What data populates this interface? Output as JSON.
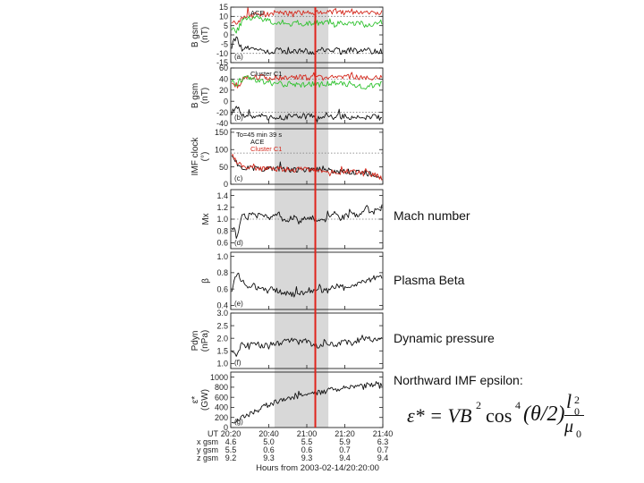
{
  "chart_data": [
    {
      "type": "line",
      "panel_tag": "(a)",
      "ylabel": "B gsm\n(nT)",
      "ylim": [
        -15,
        15
      ],
      "yticks": [
        "15",
        "10",
        "5",
        "0",
        "-5",
        "-10",
        "-15"
      ],
      "ytick_values": [
        15,
        10,
        5,
        0,
        -5,
        -10,
        -15
      ],
      "dotted_lines": [
        10,
        -10
      ],
      "legend": [
        "ACE"
      ],
      "series": [
        {
          "name": "red",
          "color": "#d42a1e",
          "values": [
            8,
            5,
            9,
            11,
            10,
            11,
            12,
            11,
            12,
            12,
            11,
            12,
            13,
            12,
            12,
            13,
            12,
            13,
            12,
            12,
            13,
            12,
            12,
            13,
            12,
            12,
            13,
            12,
            12,
            12
          ]
        },
        {
          "name": "green",
          "color": "#2fc22f",
          "values": [
            4,
            2,
            7,
            9,
            8,
            9,
            8,
            8,
            7,
            6,
            7,
            7,
            6,
            7,
            6,
            6,
            7,
            6,
            6,
            7,
            6,
            7,
            6,
            7,
            6,
            6,
            5,
            6,
            6,
            7
          ]
        },
        {
          "name": "black",
          "color": "#111111",
          "values": [
            -6,
            -2,
            -8,
            -7,
            -8,
            -9,
            -8,
            -9,
            -9,
            -8,
            -9,
            -9,
            -8,
            -9,
            -8,
            -9,
            -9,
            -8,
            -9,
            -9,
            -8,
            -9,
            -9,
            -8,
            -9,
            -9,
            -8,
            -9,
            -9,
            -9
          ]
        }
      ]
    },
    {
      "type": "line",
      "panel_tag": "(b)",
      "ylabel": "B gsm\n(nT)",
      "ylim": [
        -40,
        60
      ],
      "yticks": [
        "60",
        "40",
        "20",
        "0",
        "-20",
        "-40"
      ],
      "ytick_values": [
        60,
        40,
        20,
        0,
        -20,
        -40
      ],
      "dotted_lines": [
        40,
        -20
      ],
      "legend": [
        "Cluster C1"
      ],
      "series": [
        {
          "name": "red",
          "color": "#d42a1e",
          "values": [
            38,
            20,
            40,
            44,
            42,
            44,
            43,
            42,
            44,
            43,
            42,
            43,
            42,
            43,
            42,
            43,
            44,
            43,
            42,
            44,
            43,
            42,
            43,
            44,
            42,
            43,
            44,
            43,
            42,
            43
          ]
        },
        {
          "name": "green",
          "color": "#2fc22f",
          "values": [
            40,
            30,
            42,
            45,
            40,
            38,
            36,
            34,
            35,
            33,
            30,
            32,
            30,
            31,
            29,
            30,
            32,
            30,
            31,
            32,
            34,
            32,
            30,
            31,
            30,
            28,
            26,
            28,
            30,
            32
          ]
        },
        {
          "name": "black",
          "color": "#111111",
          "values": [
            -20,
            -10,
            -25,
            -28,
            -26,
            -28,
            -27,
            -29,
            -28,
            -27,
            -29,
            -28,
            -27,
            -29,
            -28,
            -27,
            -28,
            -29,
            -27,
            -28,
            -29,
            -27,
            -28,
            -29,
            -27,
            -28,
            -29,
            -28,
            -27,
            -28
          ]
        }
      ]
    },
    {
      "type": "line",
      "panel_tag": "(c)",
      "ylabel": "IMF clock\n(°)",
      "ylim": [
        0,
        160
      ],
      "yticks": [
        "150",
        "100",
        "50",
        "0"
      ],
      "ytick_values": [
        150,
        100,
        50,
        0
      ],
      "dotted_lines": [
        90
      ],
      "annotation": "To=45 min 39 s",
      "legend": [
        "ACE",
        "Cluster C1"
      ],
      "series": [
        {
          "name": "ACE",
          "color": "#111111",
          "values": [
            90,
            60,
            50,
            48,
            46,
            45,
            44,
            46,
            43,
            45,
            44,
            42,
            41,
            43,
            42,
            40,
            41,
            42,
            39,
            40,
            38,
            36,
            38,
            36,
            35,
            33,
            32,
            30,
            28,
            20
          ]
        },
        {
          "name": "Cluster C1",
          "color": "#d42a1e",
          "values": [
            92,
            62,
            52,
            50,
            45,
            47,
            43,
            45,
            42,
            44,
            42,
            43,
            40,
            42,
            41,
            41,
            40,
            41,
            40,
            38,
            39,
            35,
            37,
            35,
            34,
            32,
            30,
            28,
            25,
            18
          ]
        }
      ]
    },
    {
      "type": "line",
      "panel_tag": "(d)",
      "ylabel": "Mx",
      "ylim": [
        0.5,
        1.5
      ],
      "yticks": [
        "1.4",
        "1.2",
        "1.0",
        "0.8",
        "0.6"
      ],
      "ytick_values": [
        1.4,
        1.2,
        1.0,
        0.8,
        0.6
      ],
      "dotted_lines": [
        1.0
      ],
      "series": [
        {
          "name": "Mach number",
          "color": "#111111",
          "values": [
            0.9,
            0.7,
            1.1,
            1.0,
            1.15,
            1.05,
            1.1,
            1.0,
            1.05,
            1.1,
            0.95,
            1.0,
            1.05,
            0.95,
            1.0,
            1.05,
            1.0,
            0.95,
            1.0,
            1.05,
            1.1,
            1.0,
            1.05,
            1.15,
            1.05,
            1.1,
            1.2,
            1.1,
            1.15,
            1.2
          ]
        }
      ]
    },
    {
      "type": "line",
      "panel_tag": "(e)",
      "ylabel": "β",
      "ylim": [
        0.35,
        1.05
      ],
      "yticks": [
        "1.0",
        "0.8",
        "0.6",
        "0.4"
      ],
      "ytick_values": [
        1.0,
        0.8,
        0.6,
        0.4
      ],
      "series": [
        {
          "name": "Plasma Beta",
          "color": "#111111",
          "values": [
            0.6,
            0.8,
            0.7,
            0.6,
            0.65,
            0.6,
            0.62,
            0.58,
            0.6,
            0.57,
            0.56,
            0.55,
            0.53,
            0.55,
            0.56,
            0.55,
            0.58,
            0.6,
            0.57,
            0.6,
            0.62,
            0.65,
            0.6,
            0.63,
            0.65,
            0.7,
            0.68,
            0.72,
            0.75,
            0.8
          ]
        }
      ]
    },
    {
      "type": "line",
      "panel_tag": "(f)",
      "ylabel": "Pdyn\n(nPa)",
      "ylim": [
        0.8,
        3.0
      ],
      "yticks": [
        "3.0",
        "2.5",
        "2.0",
        "1.5",
        "1.0"
      ],
      "ytick_values": [
        3.0,
        2.5,
        2.0,
        1.5,
        1.0
      ],
      "series": [
        {
          "name": "Dynamic pressure",
          "color": "#111111",
          "values": [
            1.6,
            1.3,
            1.8,
            1.7,
            1.8,
            1.75,
            1.7,
            1.8,
            1.75,
            1.8,
            1.85,
            1.9,
            1.95,
            1.85,
            1.9,
            1.8,
            1.75,
            1.7,
            1.8,
            1.75,
            1.7,
            1.8,
            1.85,
            1.8,
            1.9,
            1.95,
            2.0,
            1.95,
            2.0,
            2.1
          ]
        }
      ]
    },
    {
      "type": "line",
      "panel_tag": "(g)",
      "ylabel": "ε*\n(GW)",
      "ylim": [
        0,
        1100
      ],
      "yticks": [
        "1000",
        "800",
        "600",
        "400",
        "200",
        "0"
      ],
      "ytick_values": [
        1000,
        800,
        600,
        400,
        200,
        0
      ],
      "series": [
        {
          "name": "Northward IMF epsilon",
          "color": "#111111",
          "values": [
            150,
            120,
            200,
            250,
            300,
            350,
            400,
            450,
            480,
            520,
            550,
            580,
            600,
            620,
            640,
            660,
            680,
            700,
            720,
            740,
            760,
            780,
            800,
            810,
            820,
            830,
            840,
            850,
            860,
            870
          ]
        }
      ]
    }
  ],
  "x_axis": {
    "label": "Hours from 2003-02-14/20:20:00",
    "row_labels": [
      "UT",
      "x gsm",
      "y gsm",
      "z gsm"
    ],
    "ticks": [
      {
        "ut": "20:20",
        "x": "4.6",
        "y": "5.5",
        "z": "9.2"
      },
      {
        "ut": "20:40",
        "x": "5.0",
        "y": "0.6",
        "z": "9.3"
      },
      {
        "ut": "21:00",
        "x": "5.5",
        "y": "0.6",
        "z": "9.3"
      },
      {
        "ut": "21:20",
        "x": "5.9",
        "y": "0.7",
        "z": "9.4"
      },
      {
        "ut": "21:40",
        "x": "6.3",
        "y": "0.7",
        "z": "9.4"
      }
    ],
    "tick_fractions": [
      0,
      0.25,
      0.5,
      0.75,
      1.0
    ],
    "shaded_interval_fraction": [
      0.288,
      0.642
    ],
    "marker_fraction": [
      0.556
    ],
    "marker_color": "#e0241c",
    "shade_color": "#d8d8d8"
  },
  "annotations": {
    "mach": "Mach number",
    "beta": "Plasma Beta",
    "pdyn": "Dynamic pressure",
    "epsilon_title": "Northward IMF epsilon:"
  },
  "formula": {
    "lhs": "ε* = VB",
    "exp2": "2",
    "cos": "cos",
    "exp4": "4",
    "arg": "(θ/2)",
    "num": "l",
    "num_sup": "2",
    "num_sub": "0",
    "den": "μ",
    "den_sub": "0"
  }
}
